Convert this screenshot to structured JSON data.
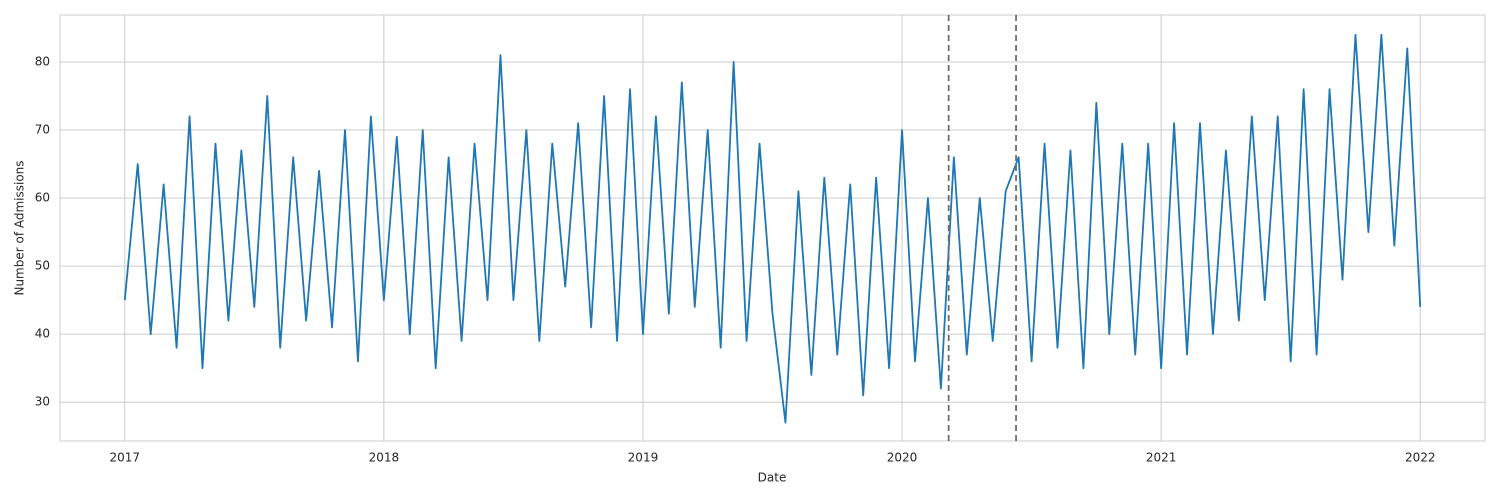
{
  "chart_data": {
    "type": "line",
    "x_label": "Date",
    "y_label": "Number of Admissions",
    "x": [
      2017.0,
      2017.05,
      2017.1,
      2017.15,
      2017.2,
      2017.25,
      2017.3,
      2017.35,
      2017.4,
      2017.45,
      2017.5,
      2017.55,
      2017.6,
      2017.65,
      2017.7,
      2017.75,
      2017.8,
      2017.85,
      2017.9,
      2017.95,
      2018.0,
      2018.05,
      2018.1,
      2018.15,
      2018.2,
      2018.25,
      2018.3,
      2018.35,
      2018.4,
      2018.45,
      2018.5,
      2018.55,
      2018.6,
      2018.65,
      2018.7,
      2018.75,
      2018.8,
      2018.85,
      2018.9,
      2018.95,
      2019.0,
      2019.05,
      2019.1,
      2019.15,
      2019.2,
      2019.25,
      2019.3,
      2019.35,
      2019.4,
      2019.45,
      2019.5,
      2019.55,
      2019.6,
      2019.65,
      2019.7,
      2019.75,
      2019.8,
      2019.85,
      2019.9,
      2019.95,
      2020.0,
      2020.05,
      2020.1,
      2020.15,
      2020.2,
      2020.25,
      2020.3,
      2020.35,
      2020.4,
      2020.45,
      2020.5,
      2020.55,
      2020.6,
      2020.65,
      2020.7,
      2020.75,
      2020.8,
      2020.85,
      2020.9,
      2020.95,
      2021.0,
      2021.05,
      2021.1,
      2021.15,
      2021.2,
      2021.25,
      2021.3,
      2021.35,
      2021.4,
      2021.45,
      2021.5,
      2021.55,
      2021.6,
      2021.65,
      2021.7,
      2021.75,
      2021.8,
      2021.85,
      2021.9,
      2021.95,
      2022.0
    ],
    "series": [
      {
        "color": "#1f77b4",
        "values": [
          45,
          65,
          40,
          62,
          38,
          72,
          35,
          68,
          42,
          67,
          44,
          75,
          38,
          66,
          42,
          64,
          41,
          70,
          36,
          72,
          45,
          69,
          40,
          70,
          35,
          66,
          39,
          68,
          45,
          81,
          45,
          70,
          39,
          68,
          47,
          71,
          41,
          75,
          39,
          76,
          40,
          72,
          43,
          77,
          44,
          70,
          38,
          80,
          39,
          68,
          43,
          27,
          61,
          34,
          63,
          37,
          62,
          31,
          63,
          35,
          70,
          36,
          60,
          32,
          66,
          37,
          60,
          39,
          61,
          66,
          36,
          68,
          38,
          67,
          35,
          74,
          40,
          68,
          37,
          68,
          35,
          71,
          37,
          71,
          40,
          67,
          42,
          72,
          45,
          72,
          36,
          76,
          37,
          76,
          48,
          84,
          55,
          84,
          53,
          82,
          44
        ]
      }
    ],
    "vlines": [
      2020.18,
      2020.44
    ],
    "vline_color": "#6e6e6e",
    "xlim": [
      2016.75,
      2022.25
    ],
    "ylim": [
      24.3,
      86.9
    ],
    "xticks": [
      2017,
      2018,
      2019,
      2020,
      2021,
      2022
    ],
    "yticks": [
      30,
      40,
      50,
      60,
      70,
      80
    ],
    "grid": true
  }
}
